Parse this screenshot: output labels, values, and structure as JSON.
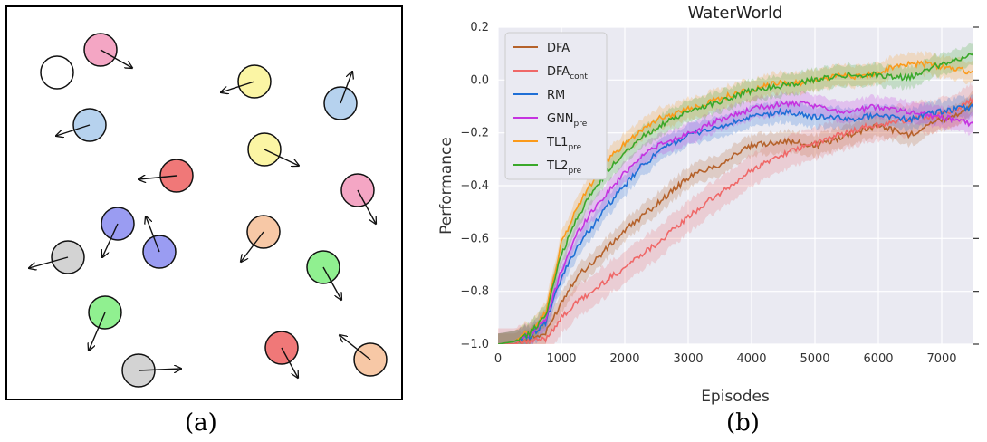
{
  "panel_a": {
    "caption": "(a)",
    "balls": [
      {
        "color": "#ffffff",
        "x": 55,
        "y": 72,
        "dx": 0,
        "dy": 0
      },
      {
        "color": "#f4a6c4",
        "x": 103,
        "y": 47,
        "dx": 35,
        "dy": 20
      },
      {
        "color": "#b6d2ee",
        "x": 91,
        "y": 130,
        "dx": -37,
        "dy": 12
      },
      {
        "color": "#f07878",
        "x": 187,
        "y": 186,
        "dx": -42,
        "dy": 4
      },
      {
        "color": "#9a9cf2",
        "x": 122,
        "y": 239,
        "dx": -17,
        "dy": 37
      },
      {
        "color": "#9a9cf2",
        "x": 168,
        "y": 270,
        "dx": -15,
        "dy": -39
      },
      {
        "color": "#d3d3d3",
        "x": 67,
        "y": 276,
        "dx": -43,
        "dy": 12
      },
      {
        "color": "#90f090",
        "x": 108,
        "y": 337,
        "dx": -18,
        "dy": 42
      },
      {
        "color": "#d3d3d3",
        "x": 145,
        "y": 401,
        "dx": 47,
        "dy": -2
      },
      {
        "color": "#fbf5a4",
        "x": 273,
        "y": 82,
        "dx": -37,
        "dy": 12
      },
      {
        "color": "#fbf5a4",
        "x": 284,
        "y": 157,
        "dx": 38,
        "dy": 18
      },
      {
        "color": "#f7c8a6",
        "x": 283,
        "y": 248,
        "dx": -25,
        "dy": 33
      },
      {
        "color": "#f07878",
        "x": 303,
        "y": 376,
        "dx": 18,
        "dy": 33
      },
      {
        "color": "#b6d2ee",
        "x": 368,
        "y": 106,
        "dx": 13,
        "dy": -35
      },
      {
        "color": "#f4a6c4",
        "x": 387,
        "y": 202,
        "dx": 20,
        "dy": 37
      },
      {
        "color": "#90f090",
        "x": 349,
        "y": 287,
        "dx": 20,
        "dy": 36
      },
      {
        "color": "#f7c8a6",
        "x": 401,
        "y": 389,
        "dx": -34,
        "dy": -27
      }
    ]
  },
  "chart_data": {
    "type": "line",
    "title": "WaterWorld",
    "xlabel": "Episodes",
    "ylabel": "Performance",
    "xlim": [
      0,
      7500
    ],
    "ylim": [
      -1.0,
      0.2
    ],
    "xticks": [
      0,
      1000,
      2000,
      3000,
      4000,
      5000,
      6000,
      7000
    ],
    "yticks": [
      -1.0,
      -0.8,
      -0.6,
      -0.4,
      -0.2,
      0.0,
      0.2
    ],
    "xtick_labels": [
      "0",
      "1000",
      "2000",
      "3000",
      "4000",
      "5000",
      "6000",
      "7000"
    ],
    "ytick_labels": [
      "−1.0",
      "−0.8",
      "−0.6",
      "−0.4",
      "−0.2",
      "0.0",
      "0.2"
    ],
    "grid": true,
    "legend_position": "top-left",
    "caption": "(b)",
    "x": [
      0,
      250,
      500,
      750,
      1000,
      1250,
      1500,
      1750,
      2000,
      2250,
      2500,
      2750,
      3000,
      3250,
      3500,
      3750,
      4000,
      4250,
      4500,
      4750,
      5000,
      5250,
      5500,
      5750,
      6000,
      6250,
      6500,
      6750,
      7000,
      7250,
      7500
    ],
    "series": [
      {
        "name": "DFA",
        "sub": "",
        "color": "#b5622b",
        "band": 0.04,
        "values": [
          -1.0,
          -1.0,
          -0.98,
          -0.96,
          -0.84,
          -0.74,
          -0.69,
          -0.63,
          -0.57,
          -0.52,
          -0.47,
          -0.42,
          -0.37,
          -0.34,
          -0.32,
          -0.28,
          -0.25,
          -0.24,
          -0.23,
          -0.24,
          -0.25,
          -0.23,
          -0.21,
          -0.19,
          -0.17,
          -0.19,
          -0.21,
          -0.17,
          -0.15,
          -0.13,
          -0.08
        ]
      },
      {
        "name": "DFA",
        "sub": "cont",
        "color": "#ef6868",
        "band": 0.06,
        "values": [
          -1.0,
          -1.0,
          -0.99,
          -0.98,
          -0.9,
          -0.84,
          -0.8,
          -0.75,
          -0.71,
          -0.66,
          -0.62,
          -0.57,
          -0.52,
          -0.47,
          -0.43,
          -0.39,
          -0.34,
          -0.31,
          -0.28,
          -0.26,
          -0.24,
          -0.22,
          -0.2,
          -0.18,
          -0.17,
          -0.16,
          -0.15,
          -0.14,
          -0.13,
          -0.11,
          -0.07
        ]
      },
      {
        "name": "RM",
        "sub": "",
        "color": "#1f6fd6",
        "band": 0.04,
        "values": [
          -1.0,
          -0.99,
          -0.97,
          -0.92,
          -0.75,
          -0.63,
          -0.55,
          -0.47,
          -0.4,
          -0.33,
          -0.28,
          -0.24,
          -0.21,
          -0.19,
          -0.18,
          -0.16,
          -0.14,
          -0.13,
          -0.12,
          -0.13,
          -0.14,
          -0.14,
          -0.15,
          -0.14,
          -0.13,
          -0.14,
          -0.15,
          -0.13,
          -0.12,
          -0.11,
          -0.1
        ]
      },
      {
        "name": "GNN",
        "sub": "pre",
        "color": "#c533e0",
        "band": 0.04,
        "values": [
          -1.0,
          -0.99,
          -0.96,
          -0.91,
          -0.72,
          -0.58,
          -0.49,
          -0.42,
          -0.35,
          -0.29,
          -0.25,
          -0.23,
          -0.2,
          -0.18,
          -0.15,
          -0.13,
          -0.11,
          -0.1,
          -0.09,
          -0.09,
          -0.1,
          -0.11,
          -0.12,
          -0.11,
          -0.1,
          -0.11,
          -0.12,
          -0.13,
          -0.14,
          -0.15,
          -0.17
        ]
      },
      {
        "name": "TL1",
        "sub": "pre",
        "color": "#fb9a1b",
        "band": 0.04,
        "values": [
          -1.0,
          -0.99,
          -0.95,
          -0.88,
          -0.62,
          -0.48,
          -0.38,
          -0.3,
          -0.24,
          -0.19,
          -0.15,
          -0.13,
          -0.11,
          -0.09,
          -0.07,
          -0.05,
          -0.04,
          -0.02,
          -0.01,
          -0.01,
          0.0,
          0.01,
          0.02,
          0.01,
          0.03,
          0.05,
          0.06,
          0.06,
          0.05,
          0.04,
          0.03
        ]
      },
      {
        "name": "TL2",
        "sub": "pre",
        "color": "#3aa82a",
        "band": 0.04,
        "values": [
          -1.0,
          -0.99,
          -0.96,
          -0.89,
          -0.66,
          -0.52,
          -0.42,
          -0.34,
          -0.27,
          -0.22,
          -0.18,
          -0.15,
          -0.12,
          -0.1,
          -0.08,
          -0.06,
          -0.04,
          -0.03,
          -0.02,
          -0.01,
          0.0,
          0.01,
          0.02,
          0.02,
          0.02,
          0.01,
          0.01,
          0.04,
          0.06,
          0.08,
          0.1
        ]
      }
    ]
  }
}
